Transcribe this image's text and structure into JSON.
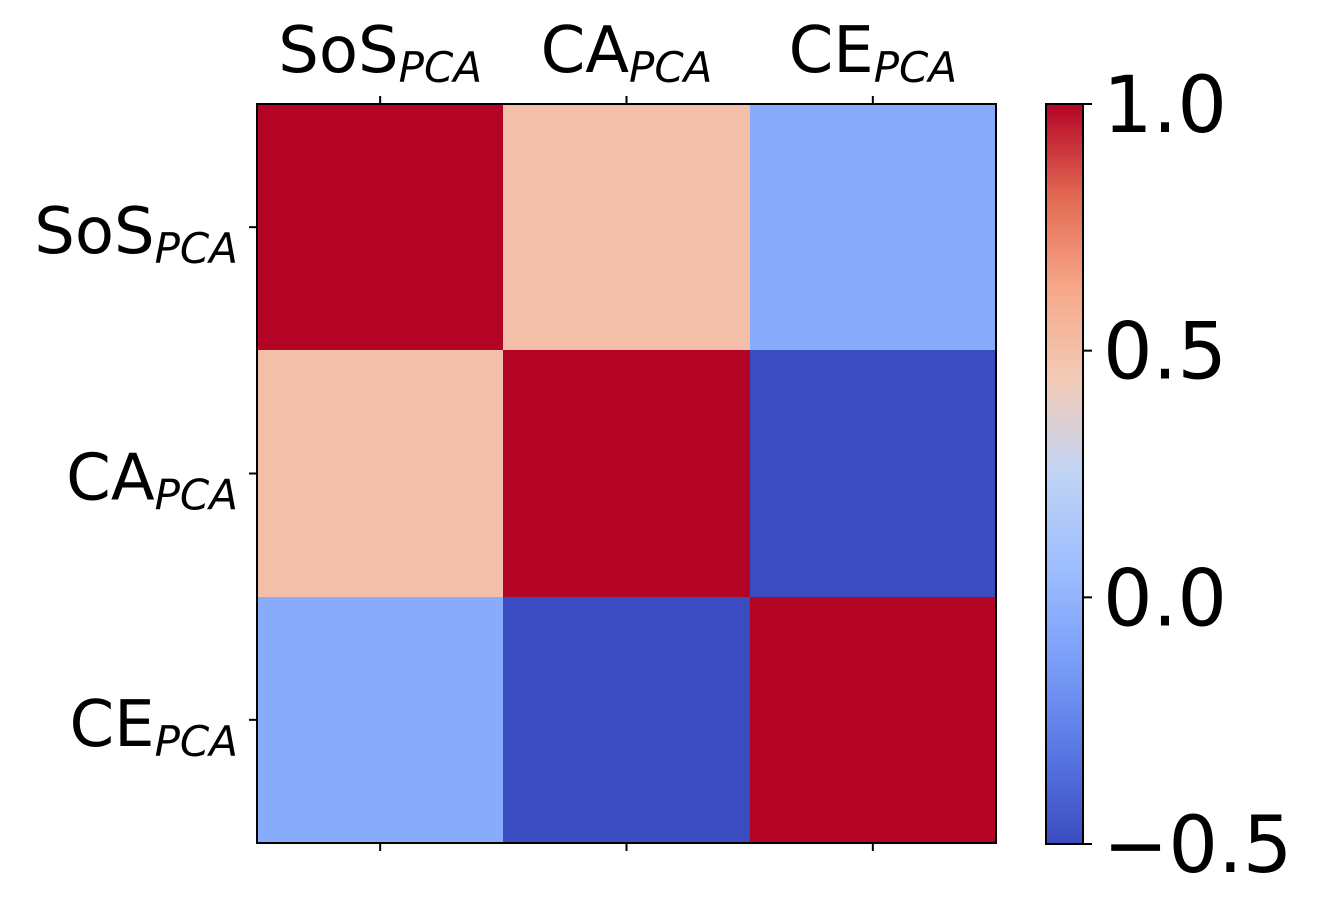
{
  "chart_data": {
    "type": "heatmap",
    "title": "",
    "xlabel": "",
    "ylabel": "",
    "categories": [
      {
        "base": "SoS",
        "sub": "PCA"
      },
      {
        "base": "CA",
        "sub": "PCA"
      },
      {
        "base": "CE",
        "sub": "PCA"
      }
    ],
    "matrix": [
      [
        1.0,
        0.5,
        -0.05
      ],
      [
        0.5,
        1.0,
        -0.5
      ],
      [
        -0.05,
        -0.5,
        1.0
      ]
    ],
    "x_ticks_position": "top",
    "colormap": "coolwarm",
    "colorbar": {
      "range": [
        -0.5,
        1.0
      ],
      "ticks": [
        1.0,
        0.5,
        0.0,
        -0.5
      ],
      "tick_labels": [
        "1.0",
        "0.5",
        "0.0",
        "−0.5"
      ],
      "position": "right"
    },
    "grid": false
  }
}
